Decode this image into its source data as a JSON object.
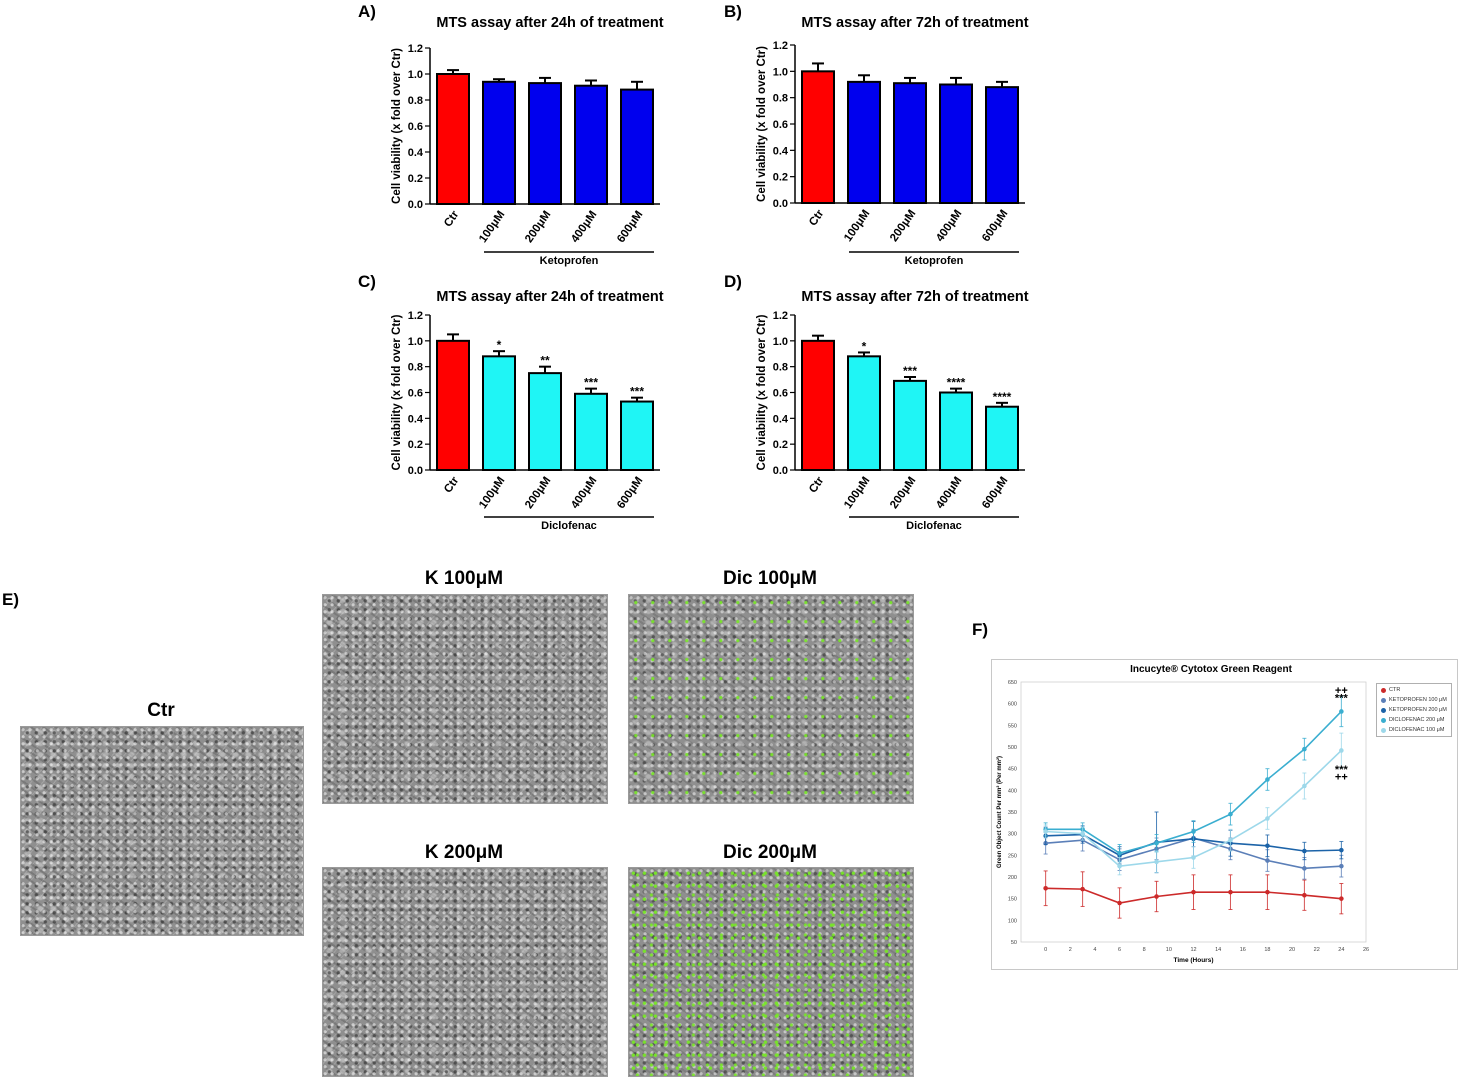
{
  "panel_labels": {
    "A": "A)",
    "B": "B)",
    "C": "C)",
    "D": "D)",
    "E": "E)",
    "F": "F)"
  },
  "chart_data": [
    {
      "id": "A",
      "type": "bar",
      "title": "MTS assay after 24h of treatment",
      "ylabel": "Cell viability (x fold over Ctr)",
      "ylim": [
        0,
        1.2
      ],
      "yticks": [
        "0.0",
        "0.2",
        "0.4",
        "0.6",
        "0.8",
        "1.0",
        "1.2"
      ],
      "categories": [
        "Ctr",
        "100μM",
        "200μM",
        "400μM",
        "600μM"
      ],
      "values": [
        1.0,
        0.94,
        0.93,
        0.91,
        0.88
      ],
      "errors": [
        0.03,
        0.02,
        0.04,
        0.04,
        0.06
      ],
      "colors": [
        "#ff0000",
        "#0000ee",
        "#0000ee",
        "#0000ee",
        "#0000ee"
      ],
      "significance": [
        "",
        "",
        "",
        "",
        ""
      ],
      "group_label": "Ketoprofen"
    },
    {
      "id": "B",
      "type": "bar",
      "title": "MTS assay after 72h of treatment",
      "ylabel": "Cell viability (x fold over Ctr)",
      "ylim": [
        0,
        1.2
      ],
      "yticks": [
        "0.0",
        "0.2",
        "0.4",
        "0.6",
        "0.8",
        "1.0",
        "1.2"
      ],
      "categories": [
        "Ctr",
        "100μM",
        "200μM",
        "400μM",
        "600μM"
      ],
      "values": [
        1.0,
        0.92,
        0.91,
        0.9,
        0.88
      ],
      "errors": [
        0.06,
        0.05,
        0.04,
        0.05,
        0.04
      ],
      "colors": [
        "#ff0000",
        "#0000ee",
        "#0000ee",
        "#0000ee",
        "#0000ee"
      ],
      "significance": [
        "",
        "",
        "",
        "",
        ""
      ],
      "group_label": "Ketoprofen"
    },
    {
      "id": "C",
      "type": "bar",
      "title": "MTS assay after 24h of treatment",
      "ylabel": "Cell viability (x fold over Ctr)",
      "ylim": [
        0,
        1.2
      ],
      "yticks": [
        "0.0",
        "0.2",
        "0.4",
        "0.6",
        "0.8",
        "1.0",
        "1.2"
      ],
      "categories": [
        "Ctr",
        "100μM",
        "200μM",
        "400μM",
        "600μM"
      ],
      "values": [
        1.0,
        0.88,
        0.75,
        0.59,
        0.53
      ],
      "errors": [
        0.05,
        0.04,
        0.05,
        0.04,
        0.03
      ],
      "colors": [
        "#ff0000",
        "#1ff5f5",
        "#1ff5f5",
        "#1ff5f5",
        "#1ff5f5"
      ],
      "significance": [
        "",
        "*",
        "**",
        "***",
        "***"
      ],
      "group_label": "Diclofenac"
    },
    {
      "id": "D",
      "type": "bar",
      "title": "MTS assay after 72h of treatment",
      "ylabel": "Cell viability (x fold over Ctr)",
      "ylim": [
        0,
        1.2
      ],
      "yticks": [
        "0.0",
        "0.2",
        "0.4",
        "0.6",
        "0.8",
        "1.0",
        "1.2"
      ],
      "categories": [
        "Ctr",
        "100μM",
        "200μM",
        "400μM",
        "600μM"
      ],
      "values": [
        1.0,
        0.88,
        0.69,
        0.6,
        0.49
      ],
      "errors": [
        0.04,
        0.03,
        0.03,
        0.03,
        0.03
      ],
      "colors": [
        "#ff0000",
        "#1ff5f5",
        "#1ff5f5",
        "#1ff5f5",
        "#1ff5f5"
      ],
      "significance": [
        "",
        "*",
        "***",
        "****",
        "****"
      ],
      "group_label": "Diclofenac"
    },
    {
      "id": "F",
      "type": "line",
      "title": "Incucyte® Cytotox Green Reagent",
      "xlabel": "Time (Hours)",
      "ylabel": "Green Object Count Per mm² (Per mm²)",
      "xlim": [
        -2,
        26
      ],
      "xticks": [
        "0",
        "2",
        "4",
        "6",
        "8",
        "10",
        "12",
        "14",
        "16",
        "18",
        "20",
        "22",
        "24",
        "26"
      ],
      "ylim": [
        50,
        650
      ],
      "yticks": [
        "50",
        "100",
        "150",
        "200",
        "250",
        "300",
        "350",
        "400",
        "450",
        "500",
        "550",
        "600",
        "650"
      ],
      "x": [
        0,
        3,
        6,
        9,
        12,
        15,
        18,
        21,
        24
      ],
      "series": [
        {
          "name": "CTR",
          "color": "#cc2a2a",
          "values": [
            174,
            172,
            140,
            155,
            165,
            165,
            165,
            158,
            150
          ],
          "errors": [
            40,
            40,
            35,
            35,
            40,
            40,
            40,
            35,
            35
          ]
        },
        {
          "name": "KETOPROFEN 100 μM",
          "color": "#5b7fb8",
          "values": [
            278,
            285,
            240,
            265,
            290,
            265,
            238,
            220,
            225
          ],
          "errors": [
            25,
            25,
            25,
            25,
            20,
            25,
            25,
            25,
            25
          ]
        },
        {
          "name": "KETOPROFEN 200 μM",
          "color": "#1c63a8",
          "values": [
            295,
            298,
            250,
            280,
            288,
            278,
            272,
            260,
            262
          ],
          "errors": [
            20,
            20,
            20,
            70,
            40,
            30,
            25,
            20,
            20
          ]
        },
        {
          "name": "DICLOFENAC 200 μM",
          "color": "#3aaed0",
          "values": [
            310,
            310,
            255,
            278,
            305,
            345,
            425,
            495,
            582
          ],
          "errors": [
            15,
            15,
            20,
            20,
            25,
            25,
            25,
            25,
            35
          ]
        },
        {
          "name": "DICLOFENAC 100 μM",
          "color": "#9dd8ea",
          "values": [
            305,
            300,
            225,
            235,
            245,
            285,
            335,
            410,
            492
          ],
          "errors": [
            15,
            15,
            20,
            25,
            25,
            25,
            25,
            30,
            40
          ]
        }
      ],
      "annotations": [
        {
          "text": "++",
          "x": 24,
          "y": 622
        },
        {
          "text": "***",
          "x": 24,
          "y": 605
        },
        {
          "text": "***",
          "x": 24,
          "y": 440
        },
        {
          "text": "++",
          "x": 24,
          "y": 423
        }
      ]
    }
  ],
  "images": [
    {
      "title": "Ctr",
      "fill": "base"
    },
    {
      "title": "K 100μM",
      "fill": "base"
    },
    {
      "title": "Dic 100μM",
      "fill": "green"
    },
    {
      "title": "K 200μM",
      "fill": "base"
    },
    {
      "title": "Dic 200μM",
      "fill": "green2"
    }
  ]
}
